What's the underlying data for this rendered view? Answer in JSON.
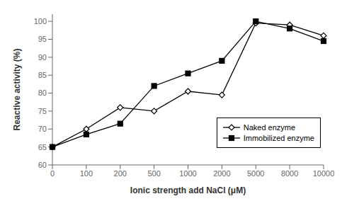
{
  "chart_data": {
    "type": "line",
    "categories": [
      "0",
      "100",
      "200",
      "500",
      "1000",
      "2000",
      "5000",
      "8000",
      "10000"
    ],
    "series": [
      {
        "name": "Naked enzyme",
        "color": "black",
        "marker": "diamond",
        "values": [
          65,
          70,
          76,
          75,
          80.5,
          79.5,
          99.5,
          99,
          96
        ]
      },
      {
        "name": "Immobilized enzyme",
        "color": "black",
        "marker": "square",
        "values": [
          65,
          68.5,
          71.5,
          82,
          85.5,
          89,
          100,
          98,
          94.5
        ]
      }
    ],
    "xlabel": "Ionic strength add NaCl (μM)",
    "ylabel": "Reactive activity (%)",
    "ylim": [
      60,
      102
    ],
    "yticks": [
      60,
      65,
      70,
      75,
      80,
      85,
      90,
      95,
      100
    ],
    "legend": "right"
  }
}
